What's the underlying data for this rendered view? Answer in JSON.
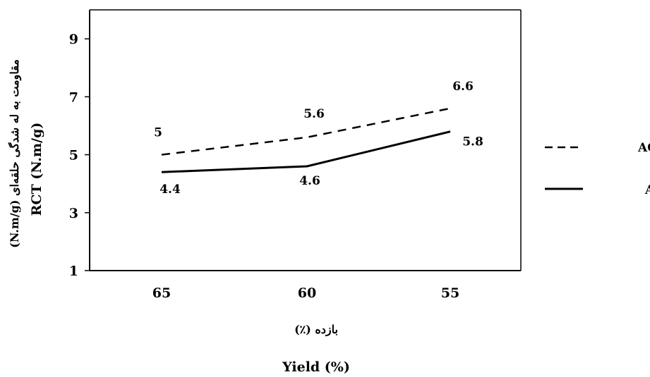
{
  "chart_data": {
    "type": "line",
    "categories": [
      "65",
      "60",
      "55"
    ],
    "series": [
      {
        "name": "با AQ",
        "values": [
          5,
          5.6,
          6.6
        ],
        "labels": [
          "5",
          "5.6",
          "6.6"
        ],
        "style": "dashed",
        "color": "#000000"
      },
      {
        "name": "بدون AQ",
        "values": [
          4.4,
          4.6,
          5.8
        ],
        "labels": [
          "4.4",
          "4.6",
          "5.8"
        ],
        "style": "solid",
        "color": "#000000"
      }
    ],
    "yticks": [
      "1",
      "3",
      "5",
      "7",
      "9"
    ],
    "ylim": [
      1,
      10
    ],
    "xlabel_fa": "بازده (٪)",
    "xlabel_en": "Yield (%)",
    "ylabel_fa": "مقاومت به له شدگی حلقه‌ای (N.m/g)",
    "ylabel_en": "RCT (N.m/g)",
    "grid": false,
    "legend_position": "right"
  }
}
